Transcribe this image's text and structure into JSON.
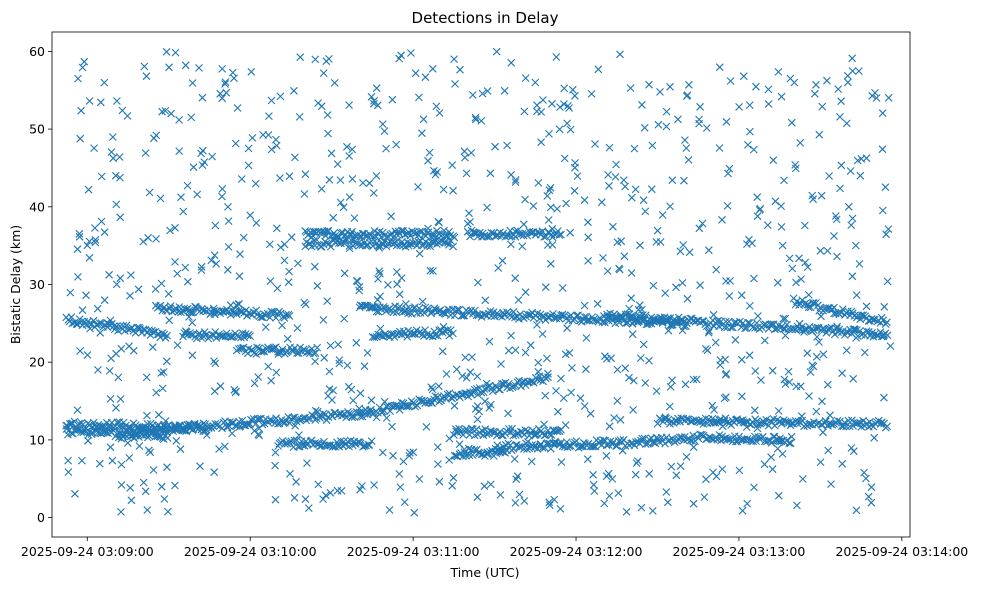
{
  "chart_data": {
    "type": "scatter",
    "title": "Detections in Delay",
    "xlabel": "Time (UTC)",
    "ylabel": "Bistatic Delay (km)",
    "marker": "x",
    "color": "#1f77b4",
    "grid": false,
    "x_unit": "time_utc",
    "xlim": [
      "2025-09-24 03:08:47",
      "2025-09-24 03:14:03"
    ],
    "ylim": [
      -2.5,
      62.5
    ],
    "x_ticks": [
      "2025-09-24 03:09:00",
      "2025-09-24 03:10:00",
      "2025-09-24 03:11:00",
      "2025-09-24 03:12:00",
      "2025-09-24 03:13:00",
      "2025-09-24 03:14:00"
    ],
    "y_ticks": [
      0,
      10,
      20,
      30,
      40,
      50,
      60
    ],
    "tracks": [
      {
        "x_start": "2025-09-24 03:08:52",
        "x_end": "2025-09-24 03:09:45",
        "y_start": 12.0,
        "y_end": 11.5
      },
      {
        "x_start": "2025-09-24 03:09:15",
        "x_end": "2025-09-24 03:10:40",
        "y_start": 11.0,
        "y_end": 13.3
      },
      {
        "x_start": "2025-09-24 03:10:40",
        "x_end": "2025-09-24 03:11:50",
        "y_start": 13.3,
        "y_end": 18.0
      },
      {
        "x_start": "2025-09-24 03:08:52",
        "x_end": "2025-09-24 03:09:30",
        "y_start": 11.0,
        "y_end": 10.5
      },
      {
        "x_start": "2025-09-24 03:11:30",
        "x_end": "2025-09-24 03:12:40",
        "y_start": 9.0,
        "y_end": 10.0
      },
      {
        "x_start": "2025-09-24 03:12:30",
        "x_end": "2025-09-24 03:13:55",
        "y_start": 12.5,
        "y_end": 12.0
      },
      {
        "x_start": "2025-09-24 03:12:40",
        "x_end": "2025-09-24 03:13:20",
        "y_start": 10.3,
        "y_end": 10.0
      },
      {
        "x_start": "2025-09-24 03:08:52",
        "x_end": "2025-09-24 03:09:30",
        "y_start": 25.5,
        "y_end": 23.5
      },
      {
        "x_start": "2025-09-24 03:10:40",
        "x_end": "2025-09-24 03:12:40",
        "y_start": 27.0,
        "y_end": 25.0
      },
      {
        "x_start": "2025-09-24 03:12:10",
        "x_end": "2025-09-24 03:13:55",
        "y_start": 26.0,
        "y_end": 23.5
      },
      {
        "x_start": "2025-09-24 03:13:20",
        "x_end": "2025-09-24 03:13:55",
        "y_start": 27.8,
        "y_end": 25.2
      },
      {
        "x_start": "2025-09-24 03:10:45",
        "x_end": "2025-09-24 03:11:15",
        "y_start": 23.5,
        "y_end": 23.8
      },
      {
        "x_start": "2025-09-24 03:09:25",
        "x_end": "2025-09-24 03:10:15",
        "y_start": 27.0,
        "y_end": 26.0
      },
      {
        "x_start": "2025-09-24 03:10:20",
        "x_end": "2025-09-24 03:11:15",
        "y_start": 36.5,
        "y_end": 36.5
      },
      {
        "x_start": "2025-09-24 03:10:20",
        "x_end": "2025-09-24 03:11:15",
        "y_start": 35.3,
        "y_end": 35.3
      },
      {
        "x_start": "2025-09-24 03:09:55",
        "x_end": "2025-09-24 03:10:25",
        "y_start": 21.5,
        "y_end": 21.5
      },
      {
        "x_start": "2025-09-24 03:10:10",
        "x_end": "2025-09-24 03:10:45",
        "y_start": 9.5,
        "y_end": 9.5
      },
      {
        "x_start": "2025-09-24 03:11:15",
        "x_end": "2025-09-24 03:11:55",
        "y_start": 11.0,
        "y_end": 11.0
      },
      {
        "x_start": "2025-09-24 03:11:15",
        "x_end": "2025-09-24 03:11:35",
        "y_start": 8.3,
        "y_end": 8.3
      },
      {
        "x_start": "2025-09-24 03:11:20",
        "x_end": "2025-09-24 03:11:55",
        "y_start": 36.5,
        "y_end": 36.5
      },
      {
        "x_start": "2025-09-24 03:09:35",
        "x_end": "2025-09-24 03:10:00",
        "y_start": 23.5,
        "y_end": 23.5
      }
    ],
    "scatter_noise": {
      "x_range": [
        "2025-09-24 03:08:52",
        "2025-09-24 03:13:56"
      ],
      "y_range": [
        0.5,
        60
      ],
      "count": 950
    }
  }
}
